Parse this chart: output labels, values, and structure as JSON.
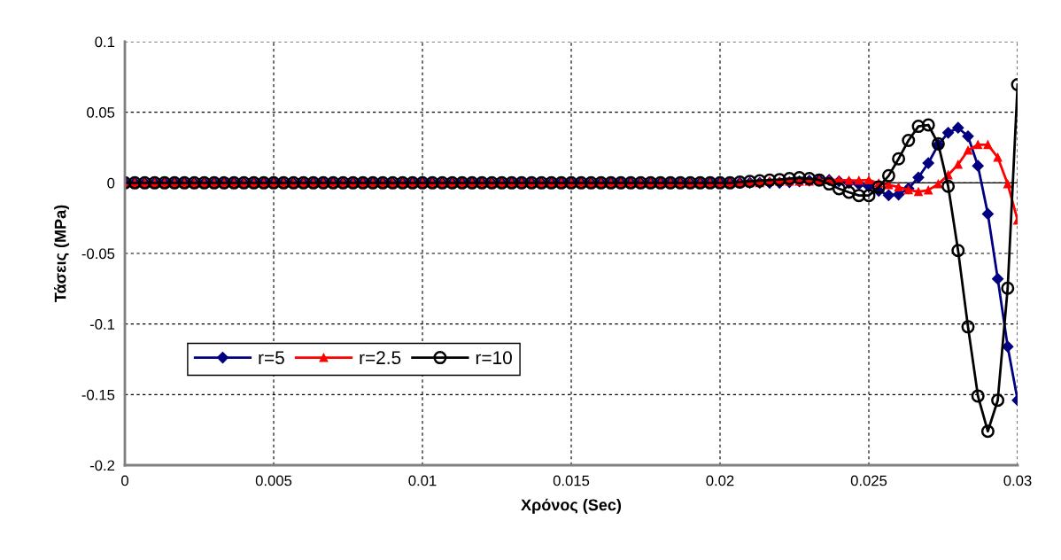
{
  "chart_data": {
    "type": "line",
    "xlabel": "Χρόνος (Sec)",
    "ylabel": "Τάσεις (MPa)",
    "x": [
      0,
      0.000333,
      0.000667,
      0.001,
      0.001333,
      0.001667,
      0.002,
      0.002333,
      0.002667,
      0.003,
      0.003333,
      0.003667,
      0.004,
      0.004333,
      0.004667,
      0.005,
      0.005333,
      0.005667,
      0.006,
      0.006333,
      0.006667,
      0.007,
      0.007333,
      0.007667,
      0.008,
      0.008333,
      0.008667,
      0.009,
      0.009333,
      0.009667,
      0.01,
      0.010333,
      0.010667,
      0.011,
      0.011333,
      0.011667,
      0.012,
      0.012333,
      0.012667,
      0.013,
      0.013333,
      0.013667,
      0.014,
      0.014333,
      0.014667,
      0.015,
      0.015333,
      0.015667,
      0.016,
      0.016333,
      0.016667,
      0.017,
      0.017333,
      0.017667,
      0.018,
      0.018333,
      0.018667,
      0.019,
      0.019333,
      0.019667,
      0.02,
      0.020333,
      0.020667,
      0.021,
      0.021333,
      0.021667,
      0.022,
      0.022333,
      0.022667,
      0.023,
      0.023333,
      0.023667,
      0.024,
      0.024333,
      0.024667,
      0.025,
      0.025333,
      0.025667,
      0.026,
      0.026333,
      0.026667,
      0.027,
      0.027333,
      0.027667,
      0.028,
      0.028333,
      0.028667,
      0.029,
      0.029333,
      0.029667,
      0.03
    ],
    "series": [
      {
        "name": "r=5",
        "color": "#000080",
        "marker": "diamond",
        "values": [
          0,
          0,
          0,
          0,
          0,
          0,
          0,
          0,
          0,
          0,
          0,
          0,
          0,
          0,
          0,
          0,
          0,
          0,
          0,
          0,
          0,
          0,
          0,
          0,
          0,
          0,
          0,
          0,
          0,
          0,
          0,
          0,
          0,
          0,
          0,
          0,
          0,
          0,
          0,
          0,
          0,
          0,
          0,
          0,
          0,
          0,
          0,
          0,
          0,
          0,
          0,
          0,
          0,
          0,
          0,
          0,
          0,
          0,
          0,
          0,
          0,
          0,
          0,
          0,
          0,
          0,
          0,
          0.0005,
          0.001,
          0.0015,
          0.002,
          0.002,
          0.001,
          0,
          -0.001,
          -0.0025,
          -0.0056,
          -0.0088,
          -0.0083,
          -0.004,
          0.0038,
          0.014,
          0.027,
          0.0355,
          0.039,
          0.033,
          0.012,
          -0.022,
          -0.068,
          -0.116,
          -0.154
        ]
      },
      {
        "name": "r=2.5",
        "color": "#ff0000",
        "marker": "triangle",
        "values": [
          0,
          0,
          0,
          0,
          0,
          0,
          0,
          0,
          0,
          0,
          0,
          0,
          0,
          0,
          0,
          0,
          0,
          0,
          0,
          0,
          0,
          0,
          0,
          0,
          0,
          0,
          0,
          0,
          0,
          0,
          0,
          0,
          0,
          0,
          0,
          0,
          0,
          0,
          0,
          0,
          0,
          0,
          0,
          0,
          0,
          0,
          0,
          0,
          0,
          0,
          0,
          0,
          0,
          0,
          0,
          0,
          0,
          0,
          0,
          0,
          0,
          0,
          0,
          0,
          0,
          0.001,
          0.001,
          0.001,
          0.001,
          0.001,
          0.002,
          0.002,
          0.002,
          0.0017,
          0.0017,
          0.002,
          -0.0003,
          -0.0015,
          -0.003,
          -0.005,
          -0.0063,
          -0.0052,
          -0.0008,
          0.0055,
          0.013,
          0.023,
          0.027,
          0.027,
          0.018,
          -0.0008,
          -0.0265
        ]
      },
      {
        "name": "r=10",
        "color": "#000000",
        "marker": "circle",
        "values": [
          0,
          0,
          0,
          0,
          0,
          0,
          0,
          0,
          0,
          0,
          0,
          0,
          0,
          0,
          0,
          0,
          0,
          0,
          0,
          0,
          0,
          0,
          0,
          0,
          0,
          0,
          0,
          0,
          0,
          0,
          0,
          0,
          0,
          0,
          0,
          0,
          0,
          0,
          0,
          0,
          0,
          0,
          0,
          0,
          0,
          0,
          0,
          0,
          0,
          0,
          0,
          0,
          0,
          0,
          0,
          0,
          0,
          0,
          0,
          0,
          0,
          0,
          0.0005,
          0.001,
          0.0015,
          0.0019,
          0.0023,
          0.003,
          0.0036,
          0.003,
          0.002,
          -0.0008,
          -0.0042,
          -0.0067,
          -0.009,
          -0.009,
          -0.003,
          0.005,
          0.017,
          0.03,
          0.04,
          0.041,
          0.0276,
          -0.0025,
          -0.048,
          -0.102,
          -0.151,
          -0.176,
          -0.154,
          -0.0746,
          0.0696
        ]
      }
    ],
    "xlim": [
      0,
      0.03
    ],
    "xticks": [
      0,
      0.005,
      0.01,
      0.015,
      0.02,
      0.025,
      0.03
    ],
    "ylim": [
      -0.2,
      0.1
    ],
    "yticks": [
      -0.2,
      -0.15,
      -0.1,
      -0.05,
      0,
      0.05,
      0.1
    ],
    "grid": true,
    "legend": "center left",
    "line_style": "solid"
  }
}
